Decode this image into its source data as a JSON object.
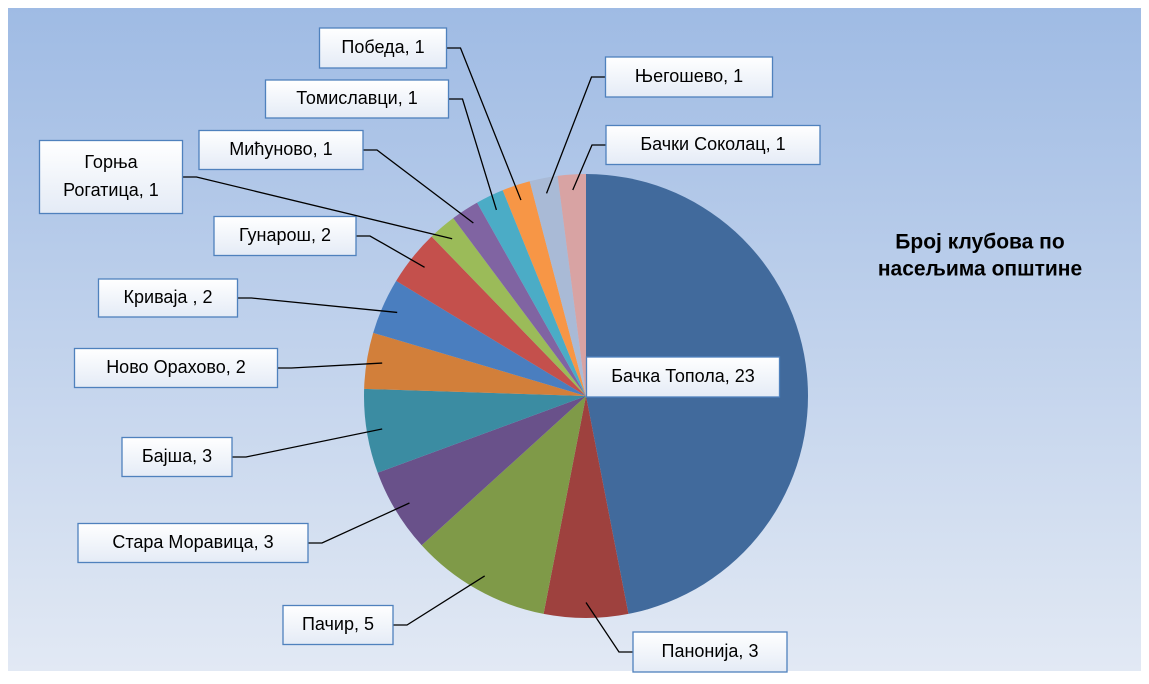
{
  "chart_data": {
    "type": "pie",
    "title": "Број клубова по\nнасељима општине",
    "values": [
      23,
      3,
      5,
      3,
      3,
      2,
      2,
      2,
      1,
      1,
      1,
      1,
      1,
      1
    ],
    "value_labels": [
      "Бачка Топола, 23",
      "Панонија, 3",
      "Пачир, 5",
      "Стара Моравица, 3",
      "Бајша, 3",
      "Ново Орахово, 2",
      "Криваја , 2",
      "Гунарош, 2",
      "Горња\nРогатица, 1",
      "Мићуново, 1",
      "Томиславци, 1",
      "Победа, 1",
      "Његошево, 1",
      "Бачки Соколац, 1"
    ],
    "colors": [
      "#416a9c",
      "#9e413e",
      "#7f9a48",
      "#69518a",
      "#3b8ca2",
      "#d27f3a",
      "#4a7ebf",
      "#c4504c",
      "#9bbb59",
      "#8064a2",
      "#4bacc6",
      "#f79646",
      "#a9bad6",
      "#d8a3a3"
    ]
  }
}
